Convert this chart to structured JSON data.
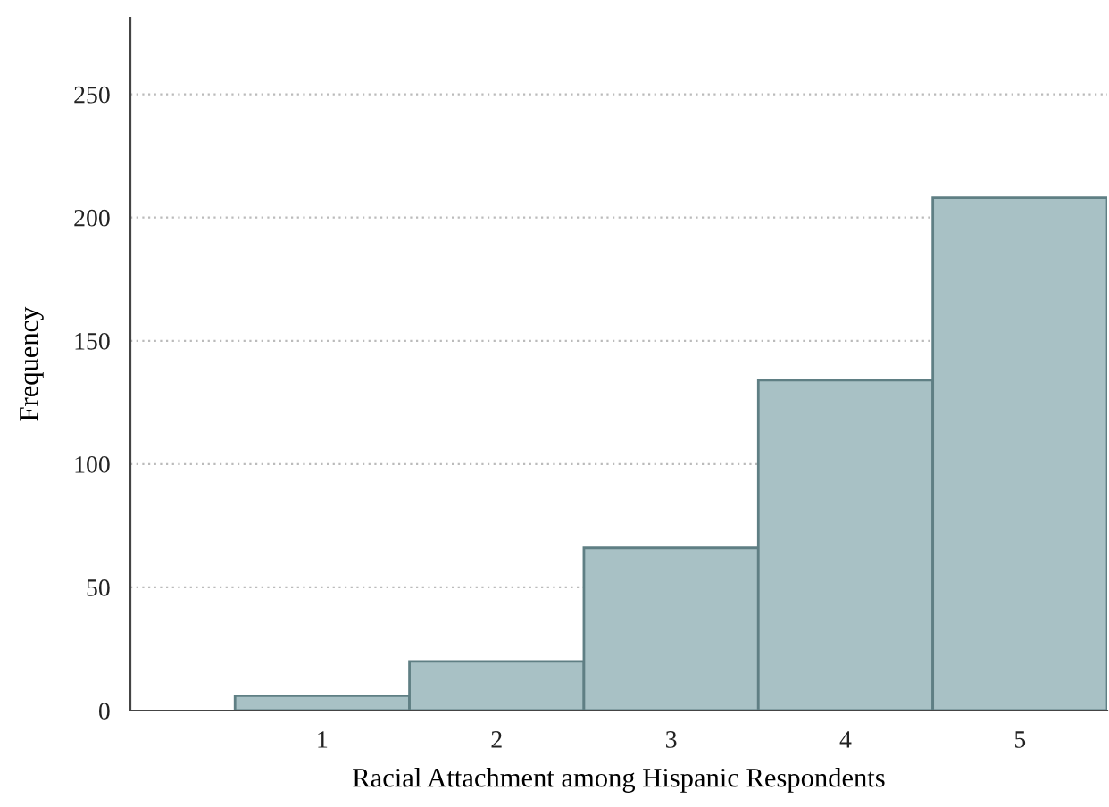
{
  "chart_data": {
    "type": "histogram",
    "xlabel": "Racial Attachment among Hispanic Respondents",
    "ylabel": "Frequency",
    "bins": [
      0.5,
      1.5,
      2.5,
      3.5,
      4.5,
      5.5
    ],
    "values": [
      6,
      20,
      66,
      134,
      208
    ],
    "color": "#a8c1c5",
    "xlim": [
      -0.1,
      5.5
    ],
    "xticks": [
      1,
      2,
      3,
      4,
      5
    ],
    "ylim": [
      0,
      281
    ],
    "yticks": [
      0,
      50,
      100,
      150,
      200,
      250
    ],
    "grid": "y"
  }
}
